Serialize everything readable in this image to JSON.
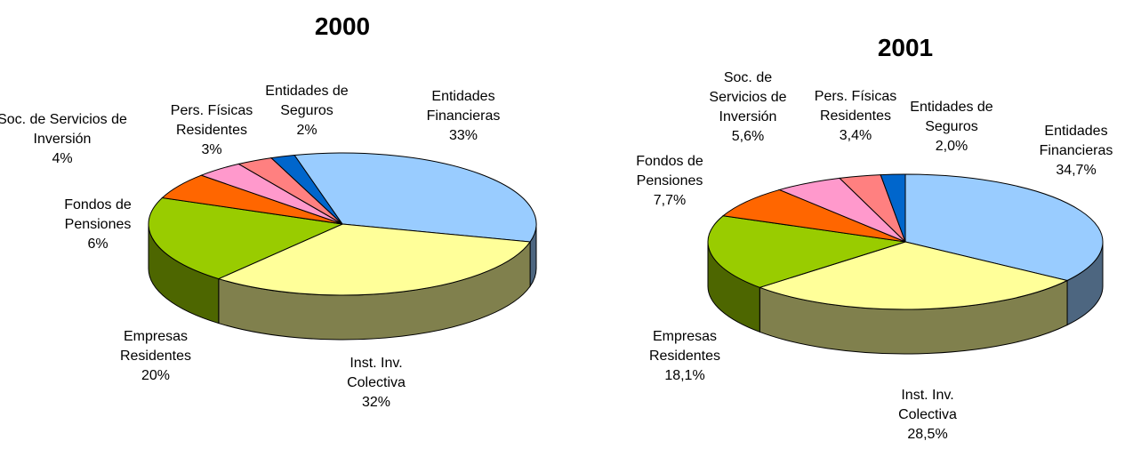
{
  "chart_data": [
    {
      "type": "pie",
      "title": "2000",
      "categories": [
        "Entidades Financieras",
        "Inst. Inv. Colectiva",
        "Empresas Residentes",
        "Fondos de Pensiones",
        "Soc. de Servicios de Inversión",
        "Pers. Físicas Residentes",
        "Entidades de Seguros"
      ],
      "values": [
        33,
        32,
        20,
        6,
        4,
        3,
        2
      ],
      "value_labels": [
        "33%",
        "32%",
        "20%",
        "6%",
        "4%",
        "3%",
        "2%"
      ],
      "colors": [
        "#99ccff",
        "#ffff99",
        "#99cc00",
        "#ff6600",
        "#ff99cc",
        "#ff8080",
        "#0066cc"
      ]
    },
    {
      "type": "pie",
      "title": "2001",
      "categories": [
        "Entidades Financieras",
        "Inst. Inv. Colectiva",
        "Empresas Residentes",
        "Fondos de Pensiones",
        "Soc. de Servicios de Inversión",
        "Pers. Físicas Residentes",
        "Entidades de Seguros"
      ],
      "values": [
        34.7,
        28.5,
        18.1,
        7.7,
        5.6,
        3.4,
        2.0
      ],
      "value_labels": [
        "34,7%",
        "28,5%",
        "18,1%",
        "7,7%",
        "5,6%",
        "3,4%",
        "2,0%"
      ],
      "colors": [
        "#99ccff",
        "#ffff99",
        "#99cc00",
        "#ff6600",
        "#ff99cc",
        "#ff8080",
        "#0066cc"
      ]
    }
  ]
}
